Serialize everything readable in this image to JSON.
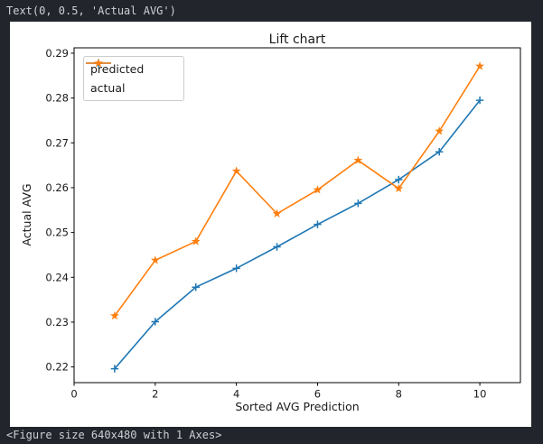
{
  "terminal": {
    "top_output": "Text(0, 0.5, 'Actual AVG')",
    "bottom_output": "<Figure size 640x480 with 1 Axes>"
  },
  "colors": {
    "terminal_bg": "#22262c",
    "terminal_text": "#ccd1d5",
    "figure_bg": "#ffffff",
    "axis": "#000000",
    "predicted_line": "#1f77b4",
    "actual_line": "#ff7f0e"
  },
  "chart_data": {
    "type": "line",
    "title": "Lift chart",
    "xlabel": "Sorted AVG Prediction",
    "ylabel": "Actual AVG",
    "x": [
      1,
      2,
      3,
      4,
      5,
      6,
      7,
      8,
      9,
      10
    ],
    "series": [
      {
        "name": "predicted",
        "color": "#1f77b4",
        "marker": "plus",
        "values": [
          0.2196,
          0.2301,
          0.2378,
          0.242,
          0.2468,
          0.2518,
          0.2565,
          0.2618,
          0.268,
          0.2795
        ]
      },
      {
        "name": "actual",
        "color": "#ff7f0e",
        "marker": "star",
        "values": [
          0.2314,
          0.2438,
          0.248,
          0.2637,
          0.2542,
          0.2595,
          0.2661,
          0.2598,
          0.2726,
          0.2871
        ]
      }
    ],
    "xlim": [
      0,
      11
    ],
    "ylim": [
      0.2165,
      0.2912
    ],
    "xticks": [
      0,
      2,
      4,
      6,
      8,
      10
    ],
    "yticks": [
      0.22,
      0.23,
      0.24,
      0.25,
      0.26,
      0.27,
      0.28,
      0.29
    ],
    "grid": false,
    "legend_position": "upper left"
  }
}
